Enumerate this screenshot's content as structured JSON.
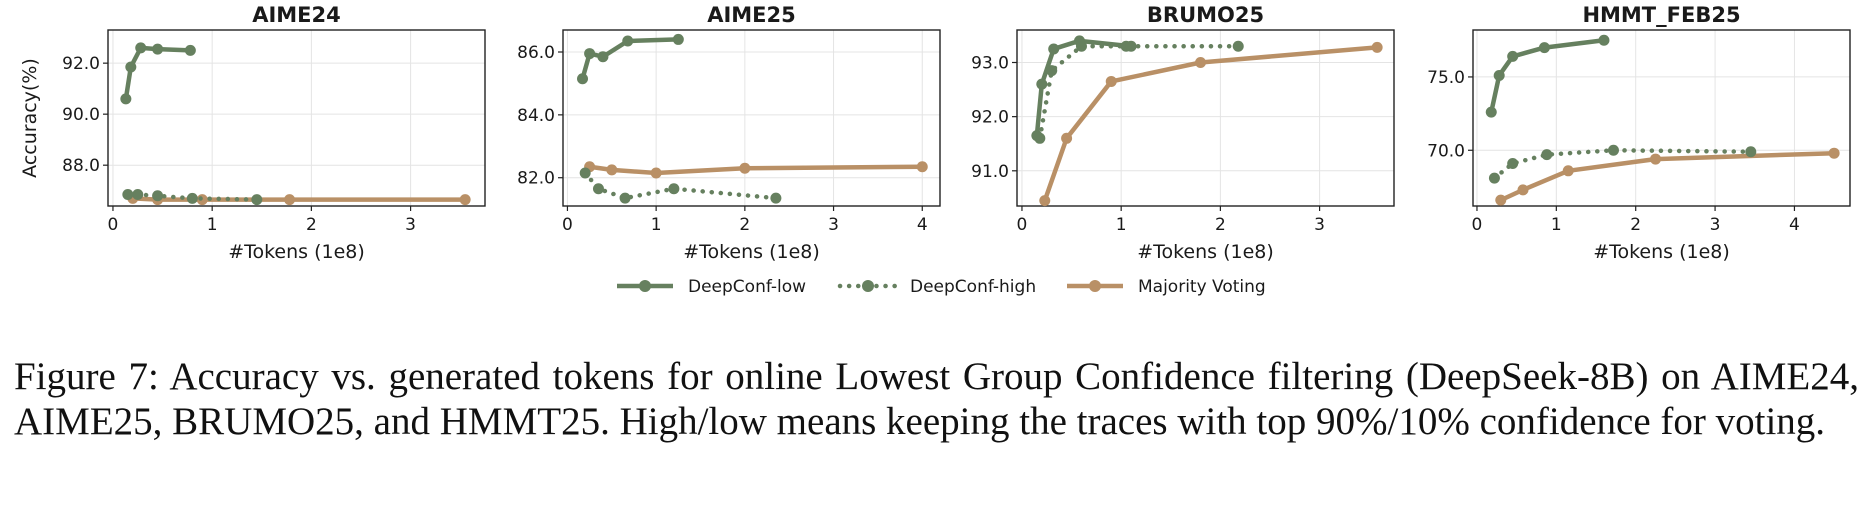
{
  "colors": {
    "deepconf_low": "#66805f",
    "deepconf_high": "#66805f",
    "majority_voting": "#b99066"
  },
  "legend": {
    "low": "DeepConf-low",
    "high": "DeepConf-high",
    "mv": "Majority Voting"
  },
  "caption": "Figure 7: Accuracy vs. generated tokens for online Lowest Group Confidence filtering (DeepSeek-8B) on AIME24, AIME25, BRUMO25, and HMMT25. High/low means keeping the traces with top 90%/10% confidence for voting.",
  "chart_data": [
    {
      "type": "line",
      "title": "AIME24",
      "xlabel": "#Tokens (1e8)",
      "ylabel": "Accuracy(%)",
      "xlim": [
        -0.05,
        3.75
      ],
      "ylim": [
        86.4,
        93.3
      ],
      "xticks": [
        0,
        1,
        2,
        3
      ],
      "xtick_labels": [
        "0",
        "1",
        "2",
        "3"
      ],
      "yticks": [
        88.0,
        90.0,
        92.0
      ],
      "ytick_labels": [
        "88.0",
        "90.0",
        "92.0"
      ],
      "grid": true,
      "series": [
        {
          "name": "DeepConf-low",
          "style": "solid",
          "x": [
            0.13,
            0.18,
            0.28,
            0.45,
            0.78
          ],
          "y": [
            90.6,
            91.85,
            92.6,
            92.55,
            92.5
          ]
        },
        {
          "name": "DeepConf-high",
          "style": "dotted",
          "x": [
            0.15,
            0.25,
            0.45,
            0.8,
            1.45
          ],
          "y": [
            86.85,
            86.85,
            86.8,
            86.7,
            86.65
          ]
        },
        {
          "name": "Majority Voting",
          "style": "solid",
          "x": [
            0.2,
            0.45,
            0.9,
            1.78,
            3.55
          ],
          "y": [
            86.7,
            86.65,
            86.65,
            86.65,
            86.65
          ]
        }
      ]
    },
    {
      "type": "line",
      "title": "AIME25",
      "xlabel": "#Tokens (1e8)",
      "ylabel": "",
      "xlim": [
        -0.05,
        4.2
      ],
      "ylim": [
        81.1,
        86.7
      ],
      "xticks": [
        0,
        1,
        2,
        3,
        4
      ],
      "xtick_labels": [
        "0",
        "1",
        "2",
        "3",
        "4"
      ],
      "yticks": [
        82.0,
        84.0,
        86.0
      ],
      "ytick_labels": [
        "82.0",
        "84.0",
        "86.0"
      ],
      "grid": true,
      "series": [
        {
          "name": "DeepConf-low",
          "style": "solid",
          "x": [
            0.17,
            0.25,
            0.4,
            0.68,
            1.25
          ],
          "y": [
            85.15,
            85.95,
            85.85,
            86.35,
            86.4
          ]
        },
        {
          "name": "DeepConf-high",
          "style": "dotted",
          "x": [
            0.2,
            0.35,
            0.65,
            1.2,
            2.35
          ],
          "y": [
            82.15,
            81.65,
            81.35,
            81.65,
            81.35
          ]
        },
        {
          "name": "Majority Voting",
          "style": "solid",
          "x": [
            0.25,
            0.5,
            1.0,
            2.0,
            4.0
          ],
          "y": [
            82.35,
            82.25,
            82.15,
            82.3,
            82.35
          ]
        }
      ]
    },
    {
      "type": "line",
      "title": "BRUMO25",
      "xlabel": "#Tokens (1e8)",
      "ylabel": "",
      "xlim": [
        -0.05,
        3.75
      ],
      "ylim": [
        90.35,
        93.6
      ],
      "xticks": [
        0,
        1,
        2,
        3
      ],
      "xtick_labels": [
        "0",
        "1",
        "2",
        "3"
      ],
      "yticks": [
        91.0,
        92.0,
        93.0
      ],
      "ytick_labels": [
        "91.0",
        "92.0",
        "93.0"
      ],
      "grid": true,
      "series": [
        {
          "name": "DeepConf-low",
          "style": "solid",
          "x": [
            0.15,
            0.2,
            0.32,
            0.58,
            1.1
          ],
          "y": [
            91.65,
            92.6,
            93.25,
            93.4,
            93.3
          ]
        },
        {
          "name": "DeepConf-high",
          "style": "dotted",
          "x": [
            0.18,
            0.3,
            0.6,
            1.05,
            2.18
          ],
          "y": [
            91.6,
            92.85,
            93.3,
            93.3,
            93.3
          ]
        },
        {
          "name": "Majority Voting",
          "style": "solid",
          "x": [
            0.23,
            0.45,
            0.9,
            1.8,
            3.58
          ],
          "y": [
            90.45,
            91.6,
            92.65,
            93.0,
            93.28
          ]
        }
      ]
    },
    {
      "type": "line",
      "title": "HMMT_FEB25",
      "xlabel": "#Tokens (1e8)",
      "ylabel": "",
      "xlim": [
        -0.05,
        4.7
      ],
      "ylim": [
        66.2,
        78.2
      ],
      "xticks": [
        0,
        1,
        2,
        3,
        4
      ],
      "xtick_labels": [
        "0",
        "1",
        "2",
        "3",
        "4"
      ],
      "yticks": [
        70.0,
        75.0
      ],
      "ytick_labels": [
        "70.0",
        "75.0"
      ],
      "grid": true,
      "series": [
        {
          "name": "DeepConf-low",
          "style": "solid",
          "x": [
            0.18,
            0.28,
            0.45,
            0.85,
            1.6
          ],
          "y": [
            72.6,
            75.1,
            76.4,
            77.0,
            77.5
          ]
        },
        {
          "name": "DeepConf-high",
          "style": "dotted",
          "x": [
            0.22,
            0.45,
            0.88,
            1.72,
            3.45
          ],
          "y": [
            68.1,
            69.1,
            69.7,
            70.0,
            69.9
          ]
        },
        {
          "name": "Majority Voting",
          "style": "solid",
          "x": [
            0.3,
            0.58,
            1.15,
            2.25,
            4.5
          ],
          "y": [
            66.6,
            67.3,
            68.6,
            69.4,
            69.8
          ]
        }
      ]
    }
  ]
}
